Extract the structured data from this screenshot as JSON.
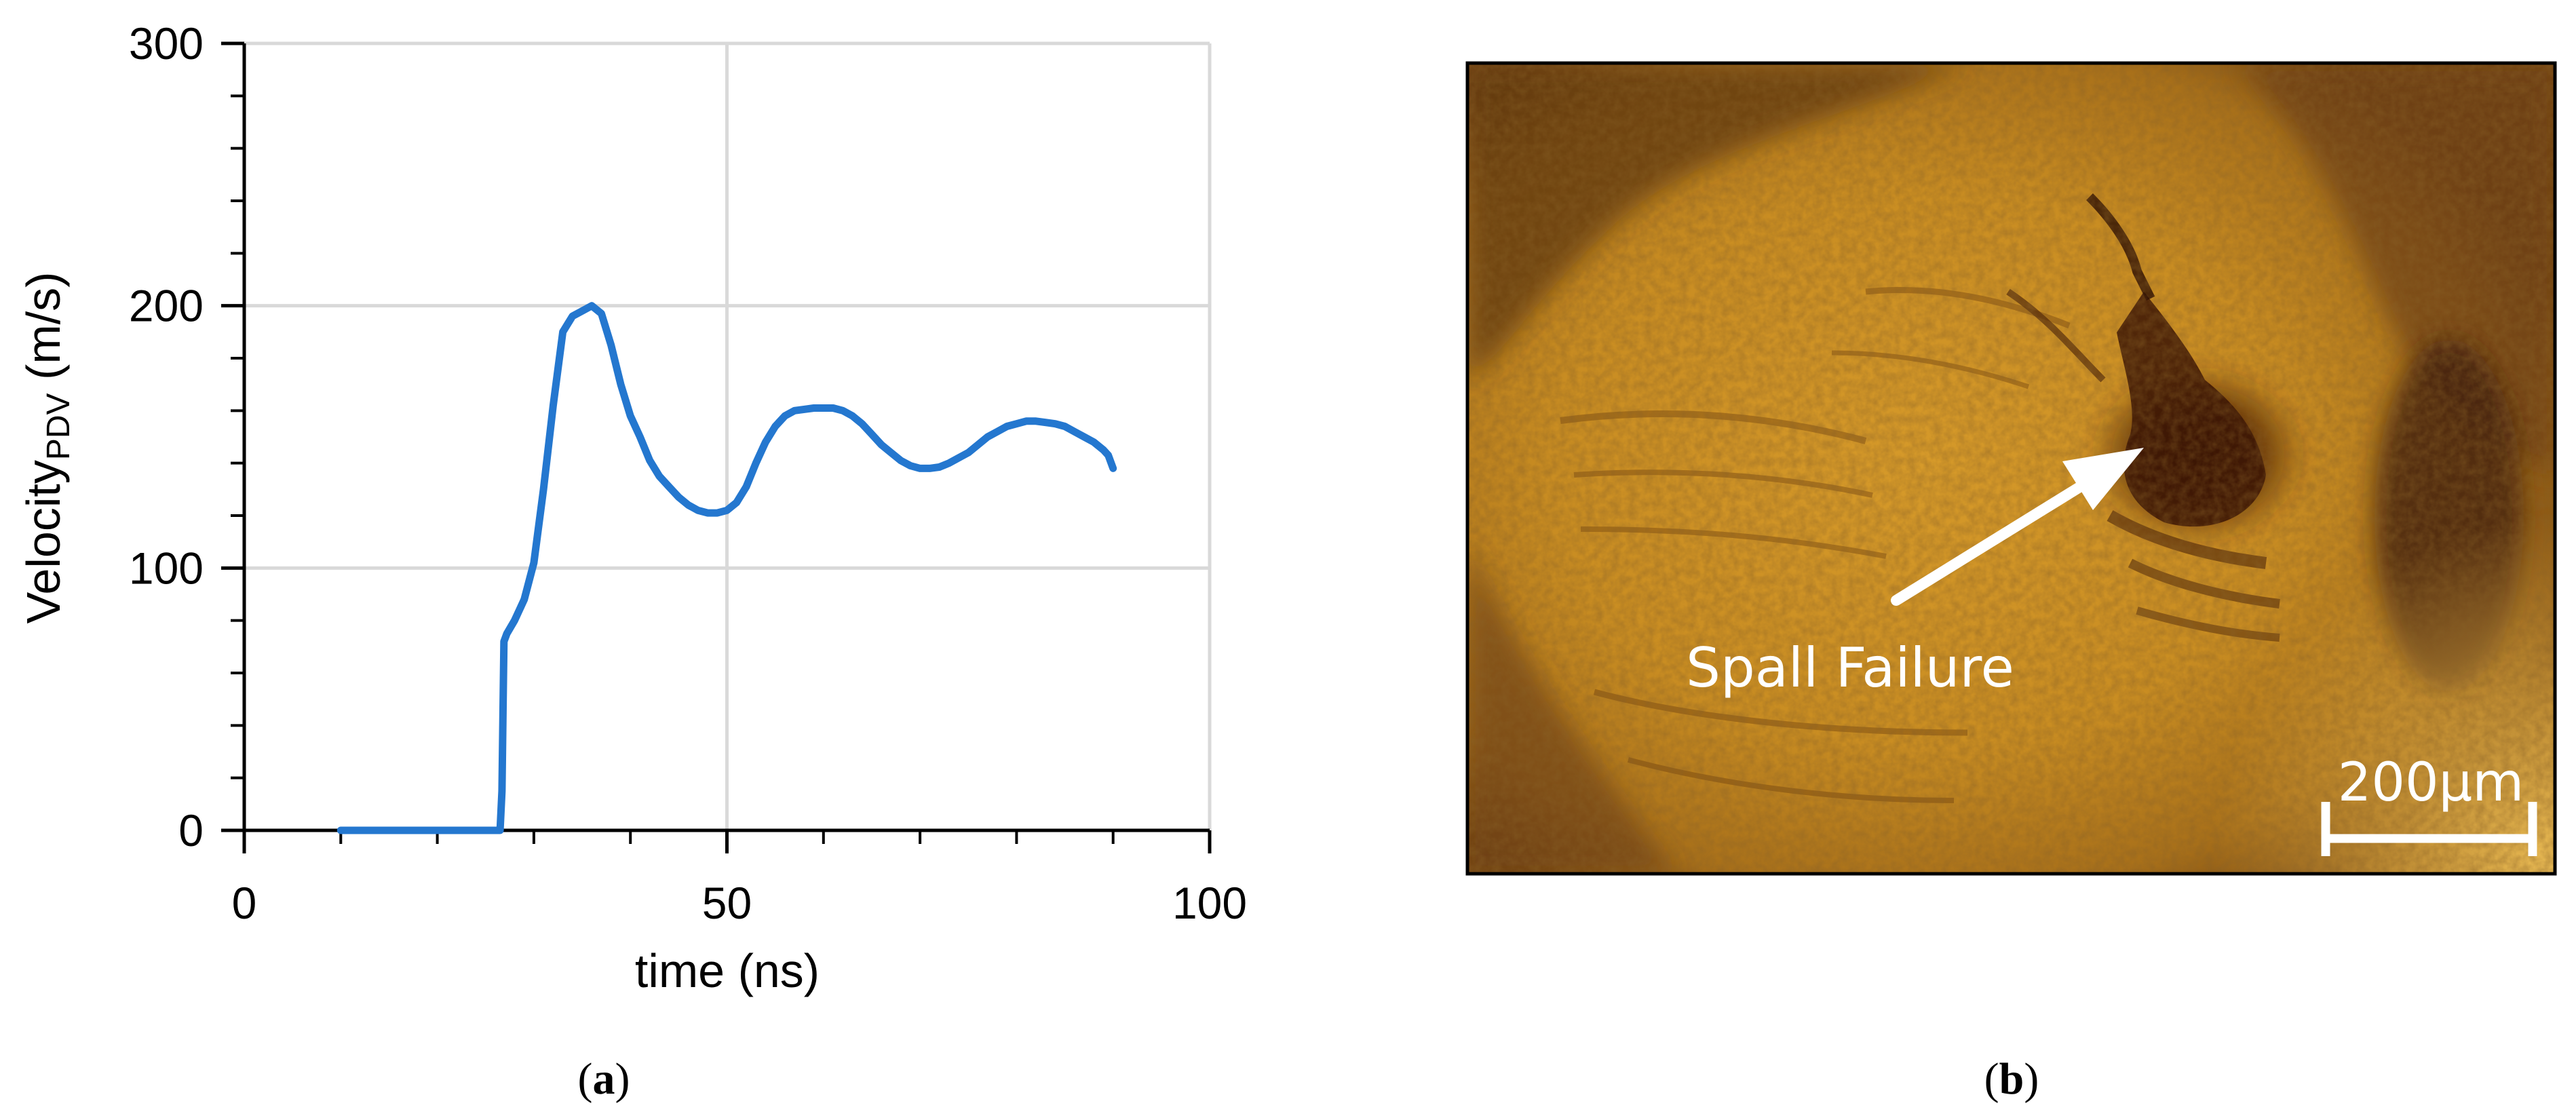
{
  "chart_data": {
    "type": "line",
    "title": "",
    "xlabel": "time (ns)",
    "ylabel_main": "Velocity",
    "ylabel_sub": "PDV",
    "ylabel_unit": " (m/s)",
    "xlim": [
      0,
      100
    ],
    "ylim": [
      0,
      300
    ],
    "x_ticks": [
      0,
      50,
      100
    ],
    "y_ticks": [
      0,
      100,
      200,
      300
    ],
    "x_tick_labels": [
      "0",
      "50",
      "100"
    ],
    "y_tick_labels": [
      "0",
      "100",
      "200",
      "300"
    ],
    "grid": true,
    "legend": "none",
    "series": [
      {
        "color": "#2477CF",
        "x": [
          10,
          15,
          20,
          25,
          26.5,
          26.7,
          26.8,
          26.9,
          27.2,
          28,
          29,
          30,
          31,
          32,
          33,
          34,
          35,
          36,
          37,
          38,
          39,
          40,
          41,
          42,
          43,
          44,
          45,
          46,
          47,
          48,
          49,
          50,
          51,
          52,
          53,
          54,
          55,
          56,
          57,
          58,
          59,
          60,
          61,
          62,
          63,
          64,
          65,
          66,
          67,
          68,
          69,
          70,
          71,
          72,
          73,
          74,
          75,
          76,
          77,
          78,
          79,
          80,
          81,
          82,
          83,
          84,
          85,
          86,
          87,
          88,
          89,
          89.5,
          90
        ],
        "y": [
          0,
          0,
          0,
          0,
          0,
          15,
          45,
          72,
          75,
          80,
          88,
          102,
          130,
          162,
          190,
          196,
          198,
          200,
          197,
          185,
          170,
          158,
          150,
          141,
          135,
          131,
          127,
          124,
          122,
          121,
          121,
          122,
          125,
          131,
          140,
          148,
          154,
          158,
          160,
          160.5,
          161,
          161,
          161,
          160,
          158,
          155,
          151,
          147,
          144,
          141,
          139,
          138,
          138,
          138.5,
          140,
          142,
          144,
          147,
          150,
          152,
          154,
          155,
          156,
          156,
          155.5,
          155,
          154,
          152,
          150,
          148,
          145,
          143,
          138
        ]
      }
    ]
  },
  "panel_a_label": "a",
  "panel_b_label": "b",
  "photo": {
    "annotation": "Spall Failure",
    "scale_bar_label": "200μm"
  }
}
